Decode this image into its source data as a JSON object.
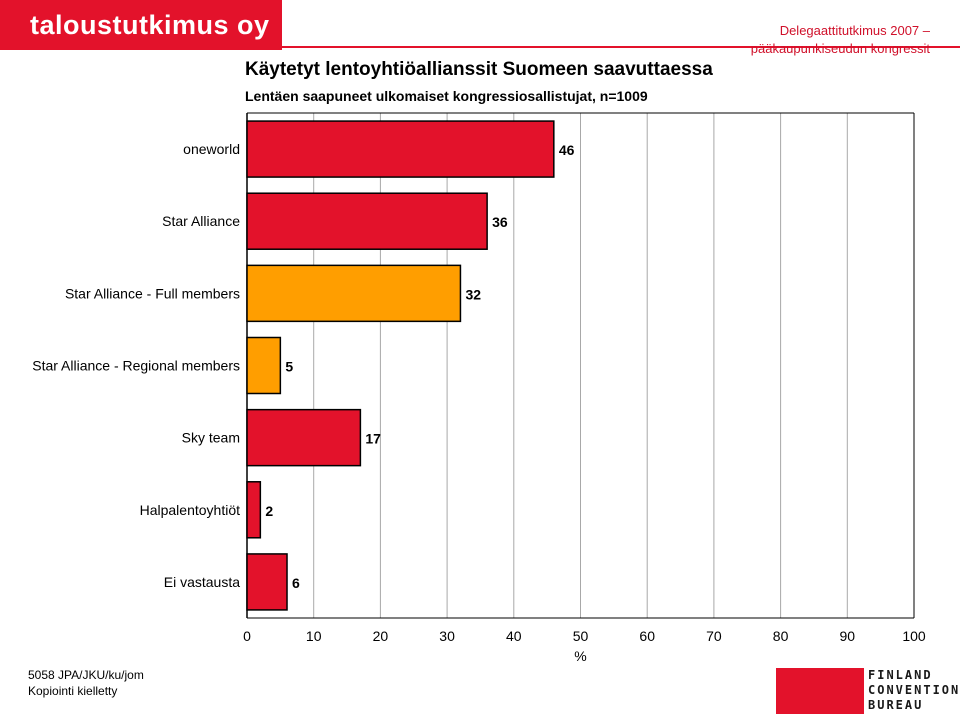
{
  "header": {
    "logo_text": "taloustutkimus oy",
    "right_line1": "Delegaattitutkimus 2007 –",
    "right_line2": "pääkaupunkiseudun kongressit"
  },
  "chart_data": {
    "type": "bar",
    "orientation": "horizontal",
    "title": "Käytetyt lentoyhtiöallianssit Suomeen saavuttaessa",
    "subtitle": "Lentäen saapuneet ulkomaiset kongressiosallistujat, n=1009",
    "categories": [
      "oneworld",
      "Star Alliance",
      "Star Alliance - Full members",
      "Star Alliance - Regional members",
      "Sky team",
      "Halpalentoyhtiöt",
      "Ei vastausta"
    ],
    "values": [
      46,
      36,
      32,
      5,
      17,
      2,
      6
    ],
    "colors": [
      "#e3122b",
      "#e3122b",
      "#ff9e00",
      "#ff9e00",
      "#e3122b",
      "#e3122b",
      "#e3122b"
    ],
    "xlabel": "%",
    "xlim": [
      0,
      100
    ],
    "xticks": [
      0,
      10,
      20,
      30,
      40,
      50,
      60,
      70,
      80,
      90,
      100
    ],
    "grid": true
  },
  "footer": {
    "code": "5058 JPA/JKU/ku/jom",
    "copyright": "Kopiointi kielletty",
    "fcb_line1": "FINLAND",
    "fcb_line2": "CONVENTION",
    "fcb_line3": "BUREAU"
  }
}
